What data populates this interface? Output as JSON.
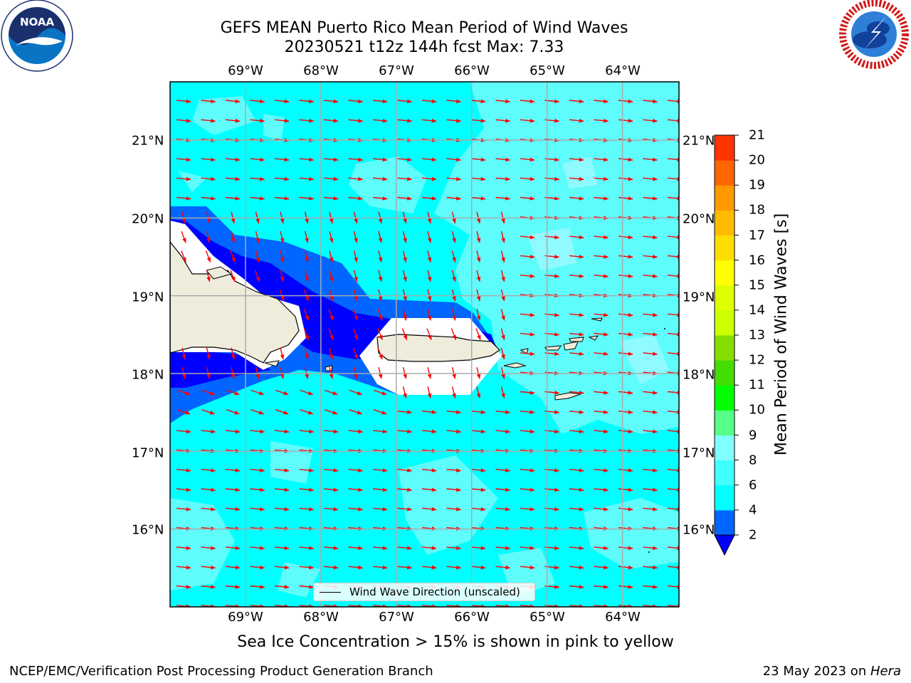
{
  "title": {
    "line1": "GEFS MEAN Puerto Rico Mean Period of Wind Waves",
    "line2": "20230521 t12z 144h fcst   Max: 7.33"
  },
  "logos": {
    "noaa": {
      "text": "NOAA",
      "ring_text": "NATIONAL OCEANIC AND ATMOSPHERIC ADMINISTRATION · U.S. DEPARTMENT OF COMMERCE",
      "icon": "noaa-logo-icon"
    },
    "nws": {
      "ring_text": "NATIONAL WEATHER SERVICE",
      "icon": "nws-logo-icon"
    }
  },
  "map": {
    "lon_labels": [
      "69°W",
      "68°W",
      "67°W",
      "66°W",
      "65°W",
      "64°W"
    ],
    "lat_labels": [
      "21°N",
      "20°N",
      "19°N",
      "18°N",
      "17°N",
      "16°N"
    ],
    "lon_values": [
      -69,
      -68,
      -67,
      -66,
      -65,
      -64
    ],
    "lat_values": [
      21,
      20,
      19,
      18,
      17,
      16
    ],
    "extent": {
      "lon": [
        -70.0,
        -63.25
      ],
      "lat": [
        15.0,
        21.75
      ]
    },
    "land_color": "#efecdc",
    "arrow_color": "#ff0000",
    "arrow_direction": "toward west (wind waves from the east)",
    "legend_label": "Wind Wave Direction (unscaled)"
  },
  "colorbar": {
    "title": "Mean Period of Wind Waves [s]",
    "levels": [
      2,
      4,
      6,
      8,
      9,
      10,
      11,
      12,
      13,
      14,
      15,
      16,
      17,
      18,
      19,
      20,
      21
    ],
    "tick_labels": [
      "2",
      "4",
      "6",
      "8",
      "9",
      "10",
      "11",
      "12",
      "13",
      "14",
      "15",
      "16",
      "17",
      "18",
      "19",
      "20",
      "21"
    ],
    "colors": [
      "#0066ff",
      "#00ffff",
      "#40ffff",
      "#80ffff",
      "#55ff88",
      "#00ff00",
      "#44dd00",
      "#88dd00",
      "#ccff00",
      "#ddff00",
      "#ffff00",
      "#ffdd00",
      "#ffbb00",
      "#ff9900",
      "#ff6600",
      "#ff3300"
    ],
    "under_color": "#0000ff"
  },
  "note": "Sea Ice Concentration > 15% is shown in pink to yellow",
  "footer": {
    "left": "NCEP/EMC/Verification Post Processing Product Generation Branch",
    "right_date": "23 May 2023 on ",
    "right_host": "Hera"
  }
}
